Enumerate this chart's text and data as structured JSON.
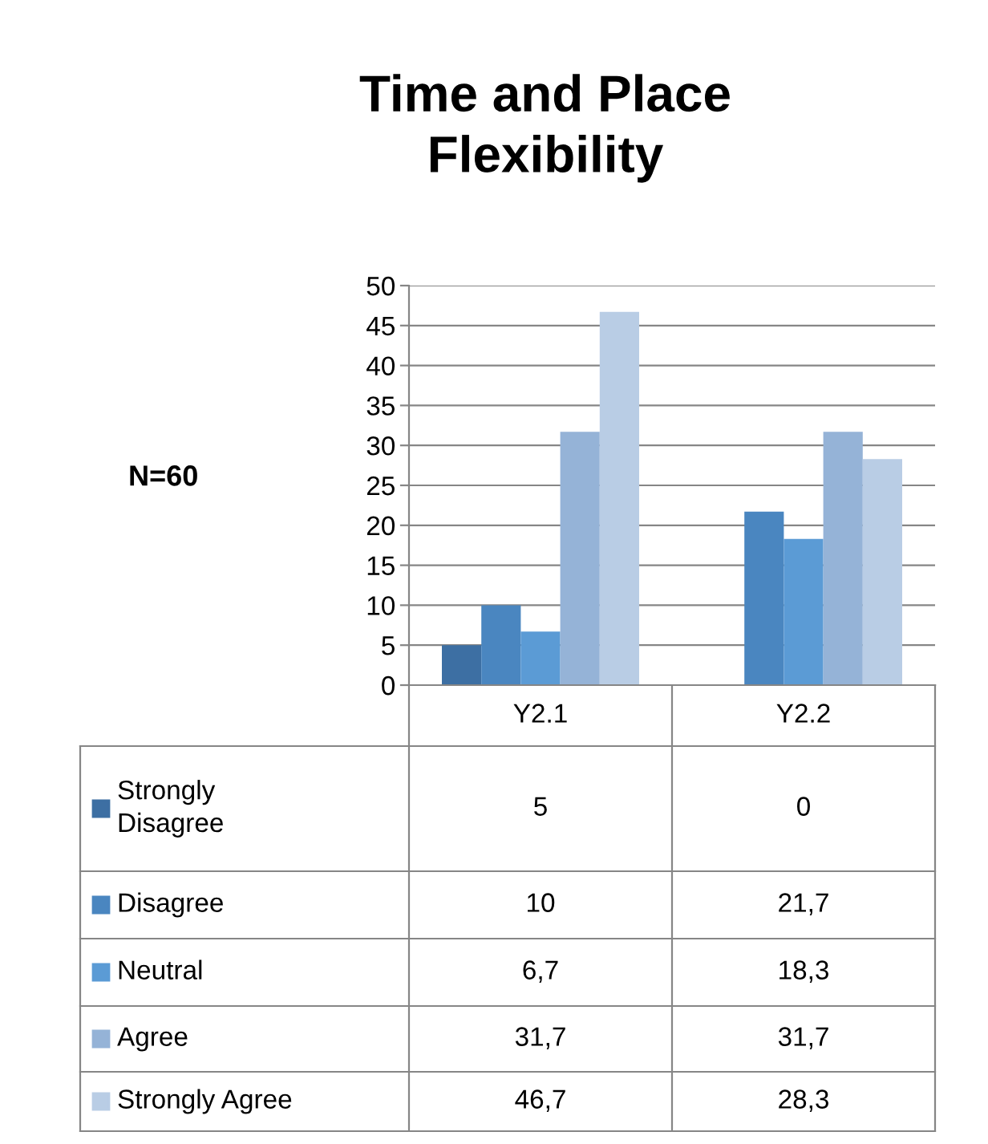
{
  "chart_data": {
    "type": "bar",
    "title": "Time and Place\nFlexibility",
    "categories": [
      "Y2.1",
      "Y2.2"
    ],
    "series": [
      {
        "name": "Strongly Disagree",
        "color": "#3d6fa3",
        "values": [
          5,
          0
        ],
        "value_labels": [
          "5",
          "0"
        ]
      },
      {
        "name": "Disagree",
        "color": "#4a86c0",
        "values": [
          10,
          21.7
        ],
        "value_labels": [
          "10",
          "21,7"
        ]
      },
      {
        "name": "Neutral",
        "color": "#5b9bd5",
        "values": [
          6.7,
          18.3
        ],
        "value_labels": [
          "6,7",
          "18,3"
        ]
      },
      {
        "name": "Agree",
        "color": "#95b3d7",
        "values": [
          31.7,
          31.7
        ],
        "value_labels": [
          "31,7",
          "31,7"
        ]
      },
      {
        "name": "Strongly Agree",
        "color": "#b9cde5",
        "values": [
          46.7,
          28.3
        ],
        "value_labels": [
          "46,7",
          "28,3"
        ]
      }
    ],
    "ylim": [
      0,
      50
    ],
    "yticks": [
      0,
      5,
      10,
      15,
      20,
      25,
      30,
      35,
      40,
      45,
      50
    ],
    "grid": "y",
    "legend": "bottom",
    "annotations": [
      "N=60"
    ]
  }
}
